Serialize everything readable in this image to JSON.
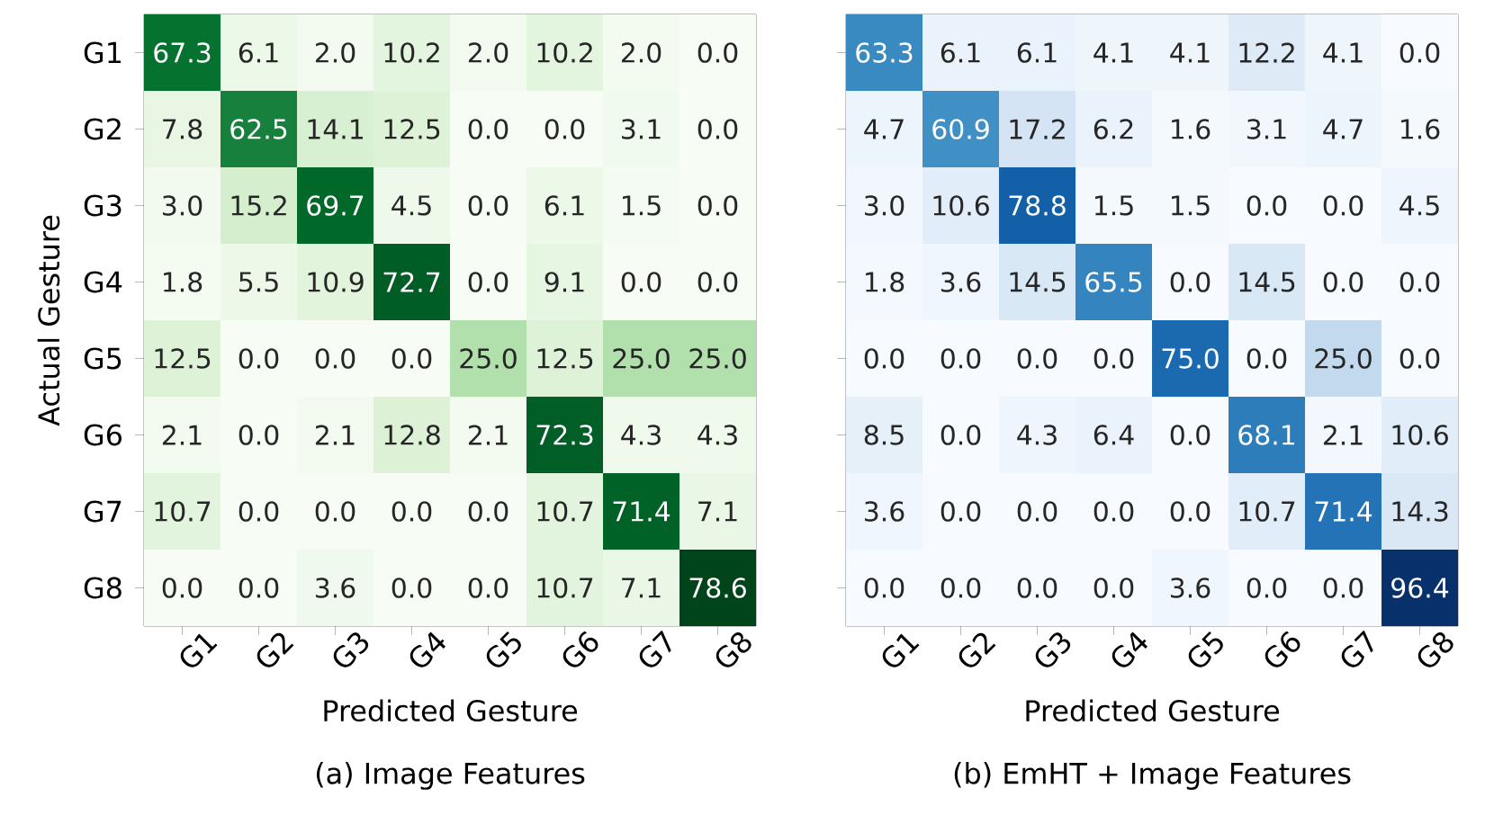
{
  "chart_data": [
    {
      "type": "heatmap",
      "title": "(a) Image Features",
      "xlabel": "Predicted Gesture",
      "ylabel": "Actual Gesture",
      "categories": [
        "G1",
        "G2",
        "G3",
        "G4",
        "G5",
        "G6",
        "G7",
        "G8"
      ],
      "y_categories": [
        "G1",
        "G2",
        "G3",
        "G4",
        "G5",
        "G6",
        "G7",
        "G8"
      ],
      "colors": [
        "#f7fcf5",
        "#e5f5e0",
        "#c7e9c0",
        "#a1d99b",
        "#74c476",
        "#41ab5d",
        "#238b45",
        "#006d2c",
        "#00441b"
      ],
      "cells": [
        [
          67.3,
          6.1,
          2.0,
          10.2,
          2.0,
          10.2,
          2.0,
          0.0
        ],
        [
          7.8,
          62.5,
          14.1,
          12.5,
          0.0,
          0.0,
          3.1,
          0.0
        ],
        [
          3.0,
          15.2,
          69.7,
          4.5,
          0.0,
          6.1,
          1.5,
          0.0
        ],
        [
          1.8,
          5.5,
          10.9,
          72.7,
          0.0,
          9.1,
          0.0,
          0.0
        ],
        [
          12.5,
          0.0,
          0.0,
          0.0,
          25.0,
          12.5,
          25.0,
          25.0
        ],
        [
          2.1,
          0.0,
          2.1,
          12.8,
          2.1,
          72.3,
          4.3,
          4.3
        ],
        [
          10.7,
          0.0,
          0.0,
          0.0,
          0.0,
          10.7,
          71.4,
          7.1
        ],
        [
          0.0,
          0.0,
          3.6,
          0.0,
          0.0,
          10.7,
          7.1,
          78.6
        ]
      ],
      "cell_labels": [
        [
          "67.3",
          "6.1",
          "2.0",
          "10.2",
          "2.0",
          "10.2",
          "2.0",
          "0.0"
        ],
        [
          "7.8",
          "62.5",
          "14.1",
          "12.5",
          "0.0",
          "0.0",
          "3.1",
          "0.0"
        ],
        [
          "3.0",
          "15.2",
          "69.7",
          "4.5",
          "0.0",
          "6.1",
          "1.5",
          "0.0"
        ],
        [
          "1.8",
          "5.5",
          "10.9",
          "72.7",
          "0.0",
          "9.1",
          "0.0",
          "0.0"
        ],
        [
          "12.5",
          "0.0",
          "0.0",
          "0.0",
          "25.0",
          "12.5",
          "25.0",
          "25.0"
        ],
        [
          "2.1",
          "0.0",
          "2.1",
          "12.8",
          "2.1",
          "72.3",
          "4.3",
          "4.3"
        ],
        [
          "10.7",
          "0.0",
          "0.0",
          "0.0",
          "0.0",
          "10.7",
          "71.4",
          "7.1"
        ],
        [
          "0.0",
          "0.0",
          "3.6",
          "0.0",
          "0.0",
          "10.7",
          "7.1",
          "78.6"
        ]
      ]
    },
    {
      "type": "heatmap",
      "title": "(b) EmHT + Image Features",
      "xlabel": "Predicted Gesture",
      "categories": [
        "G1",
        "G2",
        "G3",
        "G4",
        "G5",
        "G6",
        "G7",
        "G8"
      ],
      "y_categories": [
        null,
        null,
        null,
        null,
        null,
        null,
        null,
        null
      ],
      "tick_labels": "x",
      "colors": [
        "#f7fbff",
        "#deebf7",
        "#c6dbef",
        "#9ecae1",
        "#6baed6",
        "#4292c6",
        "#2171b5",
        "#08519c",
        "#08306b"
      ],
      "cells": [
        [
          63.3,
          6.1,
          6.1,
          4.1,
          4.1,
          12.2,
          4.1,
          0.0
        ],
        [
          4.7,
          60.9,
          17.2,
          6.2,
          1.6,
          3.1,
          4.7,
          1.6
        ],
        [
          3.0,
          10.6,
          78.8,
          1.5,
          1.5,
          0.0,
          0.0,
          4.5
        ],
        [
          1.8,
          3.6,
          14.5,
          65.5,
          0.0,
          14.5,
          0.0,
          0.0
        ],
        [
          0.0,
          0.0,
          0.0,
          0.0,
          75.0,
          0.0,
          25.0,
          0.0
        ],
        [
          8.5,
          0.0,
          4.3,
          6.4,
          0.0,
          68.1,
          2.1,
          10.6
        ],
        [
          3.6,
          0.0,
          0.0,
          0.0,
          0.0,
          10.7,
          71.4,
          14.3
        ],
        [
          0.0,
          0.0,
          0.0,
          0.0,
          3.6,
          0.0,
          0.0,
          96.4
        ]
      ],
      "cell_labels": [
        [
          "63.3",
          "6.1",
          "6.1",
          "4.1",
          "4.1",
          "12.2",
          "4.1",
          "0.0"
        ],
        [
          "4.7",
          "60.9",
          "17.2",
          "6.2",
          "1.6",
          "3.1",
          "4.7",
          "1.6"
        ],
        [
          "3.0",
          "10.6",
          "78.8",
          "1.5",
          "1.5",
          "0.0",
          "0.0",
          "4.5"
        ],
        [
          "1.8",
          "3.6",
          "14.5",
          "65.5",
          "0.0",
          "14.5",
          "0.0",
          "0.0"
        ],
        [
          "0.0",
          "0.0",
          "0.0",
          "0.0",
          "75.0",
          "0.0",
          "25.0",
          "0.0"
        ],
        [
          "8.5",
          "0.0",
          "4.3",
          "6.4",
          "0.0",
          "68.1",
          "2.1",
          "10.6"
        ],
        [
          "3.6",
          "0.0",
          "0.0",
          "0.0",
          "0.0",
          "10.7",
          "71.4",
          "14.3"
        ],
        [
          "0.0",
          "0.0",
          "0.0",
          "0.0",
          "3.6",
          "0.0",
          "0.0",
          "96.4"
        ]
      ]
    }
  ]
}
